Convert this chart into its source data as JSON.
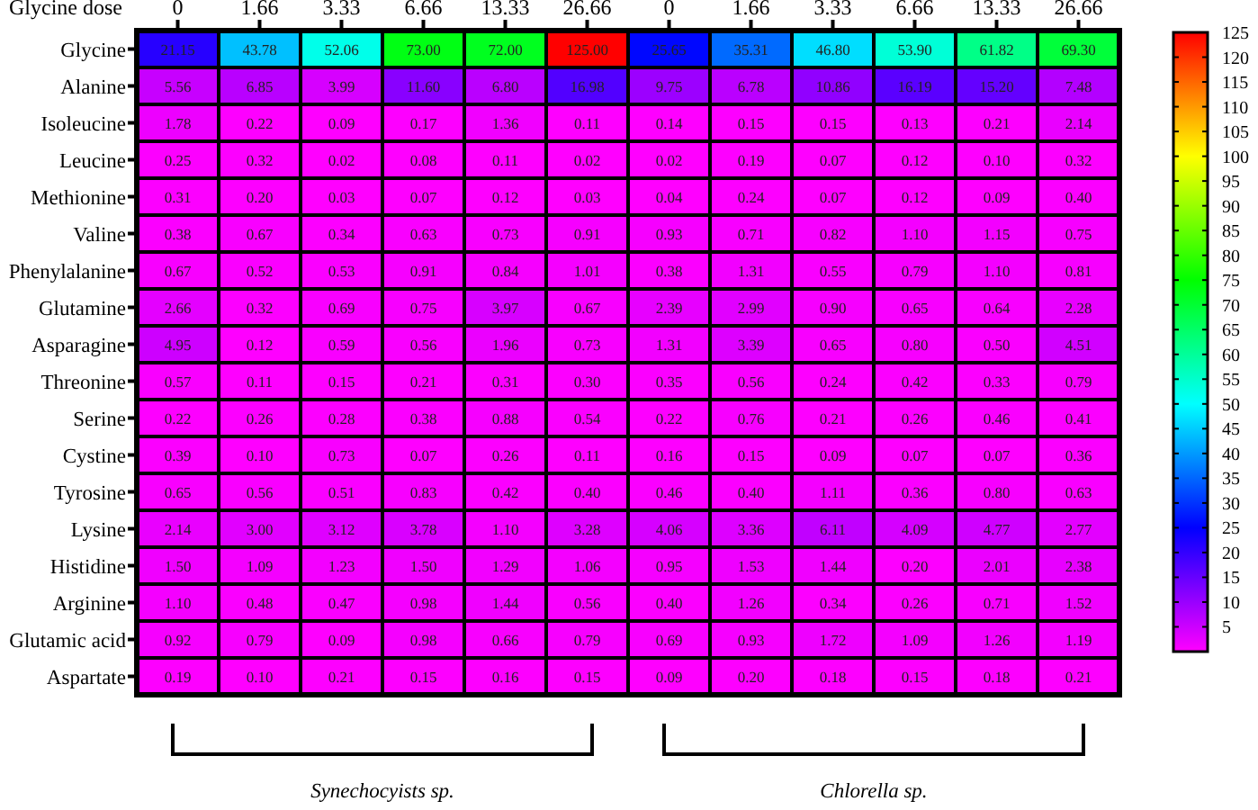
{
  "chart_data": {
    "type": "heatmap",
    "xlabel": "Glycine dose",
    "categories": [
      "0",
      "1.66",
      "3.33",
      "6.66",
      "13.33",
      "26.66",
      "0",
      "1.66",
      "3.33",
      "6.66",
      "13.33",
      "26.66"
    ],
    "y_categories": [
      "Glycine",
      "Alanine",
      "Isoleucine",
      "Leucine",
      "Methionine",
      "Valine",
      "Phenylalanine",
      "Glutamine",
      "Asparagine",
      "Threonine",
      "Serine",
      "Cystine",
      "Tyrosine",
      "Lysine",
      "Histidine",
      "Arginine",
      "Glutamic acid",
      "Aspartate"
    ],
    "cells": [
      [
        21.15,
        43.78,
        52.06,
        73.0,
        72.0,
        125.0,
        25.65,
        35.31,
        46.8,
        53.9,
        61.82,
        69.3
      ],
      [
        5.56,
        6.85,
        3.99,
        11.6,
        6.8,
        16.98,
        9.75,
        6.78,
        10.86,
        16.19,
        15.2,
        7.48
      ],
      [
        1.78,
        0.22,
        0.09,
        0.17,
        1.36,
        0.11,
        0.14,
        0.15,
        0.15,
        0.13,
        0.21,
        2.14
      ],
      [
        0.25,
        0.32,
        0.02,
        0.08,
        0.11,
        0.02,
        0.02,
        0.19,
        0.07,
        0.12,
        0.1,
        0.32
      ],
      [
        0.31,
        0.2,
        0.03,
        0.07,
        0.12,
        0.03,
        0.04,
        0.24,
        0.07,
        0.12,
        0.09,
        0.4
      ],
      [
        0.38,
        0.67,
        0.34,
        0.63,
        0.73,
        0.91,
        0.93,
        0.71,
        0.82,
        1.1,
        1.15,
        0.75
      ],
      [
        0.67,
        0.52,
        0.53,
        0.91,
        0.84,
        1.01,
        0.38,
        1.31,
        0.55,
        0.79,
        1.1,
        0.81
      ],
      [
        2.66,
        0.32,
        0.69,
        0.75,
        3.97,
        0.67,
        2.39,
        2.99,
        0.9,
        0.65,
        0.64,
        2.28
      ],
      [
        4.95,
        0.12,
        0.59,
        0.56,
        1.96,
        0.73,
        1.31,
        3.39,
        0.65,
        0.8,
        0.5,
        4.51
      ],
      [
        0.57,
        0.11,
        0.15,
        0.21,
        0.31,
        0.3,
        0.35,
        0.56,
        0.24,
        0.42,
        0.33,
        0.79
      ],
      [
        0.22,
        0.26,
        0.28,
        0.38,
        0.88,
        0.54,
        0.22,
        0.76,
        0.21,
        0.26,
        0.46,
        0.41
      ],
      [
        0.39,
        0.1,
        0.73,
        0.07,
        0.26,
        0.11,
        0.16,
        0.15,
        0.09,
        0.07,
        0.07,
        0.36
      ],
      [
        0.65,
        0.56,
        0.51,
        0.83,
        0.42,
        0.4,
        0.46,
        0.4,
        1.11,
        0.36,
        0.8,
        0.63
      ],
      [
        2.14,
        3.0,
        3.12,
        3.78,
        1.1,
        3.28,
        4.06,
        3.36,
        6.11,
        4.09,
        4.77,
        2.77
      ],
      [
        1.5,
        1.09,
        1.23,
        1.5,
        1.29,
        1.06,
        0.95,
        1.53,
        1.44,
        0.2,
        2.01,
        2.38
      ],
      [
        1.1,
        0.48,
        0.47,
        0.98,
        1.44,
        0.56,
        0.4,
        1.26,
        0.34,
        0.26,
        0.71,
        1.52
      ],
      [
        0.92,
        0.79,
        0.09,
        0.98,
        0.66,
        0.79,
        0.69,
        0.93,
        1.72,
        1.09,
        1.26,
        1.19
      ],
      [
        0.19,
        0.1,
        0.21,
        0.15,
        0.16,
        0.15,
        0.09,
        0.2,
        0.18,
        0.15,
        0.18,
        0.21
      ]
    ],
    "cell_labels": [
      [
        "21.15",
        "43.78",
        "52.06",
        "73.00",
        "72.00",
        "125.00",
        "25.65",
        "35.31",
        "46.80",
        "53.90",
        "61.82",
        "69.30"
      ],
      [
        "5.56",
        "6.85",
        "3.99",
        "11.60",
        "6.80",
        "16.98",
        "9.75",
        "6.78",
        "10.86",
        "16.19",
        "15.20",
        "7.48"
      ],
      [
        "1.78",
        "0.22",
        "0.09",
        "0.17",
        "1.36",
        "0.11",
        "0.14",
        "0.15",
        "0.15",
        "0.13",
        "0.21",
        "2.14"
      ],
      [
        "0.25",
        "0.32",
        "0.02",
        "0.08",
        "0.11",
        "0.02",
        "0.02",
        "0.19",
        "0.07",
        "0.12",
        "0.10",
        "0.32"
      ],
      [
        "0.31",
        "0.20",
        "0.03",
        "0.07",
        "0.12",
        "0.03",
        "0.04",
        "0.24",
        "0.07",
        "0.12",
        "0.09",
        "0.40"
      ],
      [
        "0.38",
        "0.67",
        "0.34",
        "0.63",
        "0.73",
        "0.91",
        "0.93",
        "0.71",
        "0.82",
        "1.10",
        "1.15",
        "0.75"
      ],
      [
        "0.67",
        "0.52",
        "0.53",
        "0.91",
        "0.84",
        "1.01",
        "0.38",
        "1.31",
        "0.55",
        "0.79",
        "1.10",
        "0.81"
      ],
      [
        "2.66",
        "0.32",
        "0.69",
        "0.75",
        "3.97",
        "0.67",
        "2.39",
        "2.99",
        "0.90",
        "0.65",
        "0.64",
        "2.28"
      ],
      [
        "4.95",
        "0.12",
        "0.59",
        "0.56",
        "1.96",
        "0.73",
        "1.31",
        "3.39",
        "0.65",
        "0.80",
        "0.50",
        "4.51"
      ],
      [
        "0.57",
        "0.11",
        "0.15",
        "0.21",
        "0.31",
        "0.30",
        "0.35",
        "0.56",
        "0.24",
        "0.42",
        "0.33",
        "0.79"
      ],
      [
        "0.22",
        "0.26",
        "0.28",
        "0.38",
        "0.88",
        "0.54",
        "0.22",
        "0.76",
        "0.21",
        "0.26",
        "0.46",
        "0.41"
      ],
      [
        "0.39",
        "0.10",
        "0.73",
        "0.07",
        "0.26",
        "0.11",
        "0.16",
        "0.15",
        "0.09",
        "0.07",
        "0.07",
        "0.36"
      ],
      [
        "0.65",
        "0.56",
        "0.51",
        "0.83",
        "0.42",
        "0.40",
        "0.46",
        "0.40",
        "1.11",
        "0.36",
        "0.80",
        "0.63"
      ],
      [
        "2.14",
        "3.00",
        "3.12",
        "3.78",
        "1.10",
        "3.28",
        "4.06",
        "3.36",
        "6.11",
        "4.09",
        "4.77",
        "2.77"
      ],
      [
        "1.50",
        "1.09",
        "1.23",
        "1.50",
        "1.29",
        "1.06",
        "0.95",
        "1.53",
        "1.44",
        "0.20",
        "2.01",
        "2.38"
      ],
      [
        "1.10",
        "0.48",
        "0.47",
        "0.98",
        "1.44",
        "0.56",
        "0.40",
        "1.26",
        "0.34",
        "0.26",
        "0.71",
        "1.52"
      ],
      [
        "0.92",
        "0.79",
        "0.09",
        "0.98",
        "0.66",
        "0.79",
        "0.69",
        "0.93",
        "1.72",
        "1.09",
        "1.26",
        "1.19"
      ],
      [
        "0.19",
        "0.10",
        "0.21",
        "0.15",
        "0.16",
        "0.15",
        "0.09",
        "0.20",
        "0.18",
        "0.15",
        "0.18",
        "0.21"
      ]
    ],
    "clim": [
      0,
      125
    ],
    "cticks": [
      5,
      10,
      15,
      20,
      25,
      30,
      35,
      40,
      45,
      50,
      55,
      60,
      65,
      70,
      75,
      80,
      85,
      90,
      95,
      100,
      105,
      110,
      115,
      120,
      125
    ],
    "annotations": [
      "Synechocyists sp.",
      "Chlorella  sp."
    ]
  }
}
